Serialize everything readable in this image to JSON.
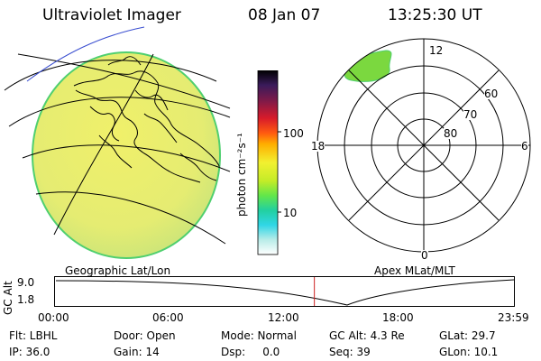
{
  "header": {
    "instrument": "Ultraviolet Imager",
    "date": "08 Jan 07",
    "time": "13:25:30 UT"
  },
  "colorbar": {
    "unit_label": "photon cm⁻²s⁻¹",
    "tick_labels": [
      "100",
      "10"
    ]
  },
  "polar_plot": {
    "mlt_labels": {
      "top": "12",
      "left": "18",
      "right": "6",
      "bottom": "0"
    },
    "mlat_labels": [
      "60",
      "70",
      "80"
    ]
  },
  "panel_labels": {
    "geographic": "Geographic Lat/Lon",
    "apex": "Apex  MLat/MLT"
  },
  "timeline": {
    "y_axis_label": "GC Alt",
    "y_ticks": [
      "9.0",
      "1.8"
    ],
    "x_ticks": [
      "00:00",
      "06:00",
      "12:00",
      "18:00",
      "23:59"
    ],
    "current_time_fraction": 0.565,
    "curve_color": "#000000",
    "marker_color": "#cc2222"
  },
  "status": {
    "row1": [
      "Flt: LBHL",
      "Door: Open",
      "Mode: Normal",
      "GC Alt: 4.3 Re",
      "GLat: 29.7"
    ],
    "row2": [
      "IP: 36.0",
      "Gain: 14",
      "Dsp:     0.0",
      "Seq: 39",
      "GLon: 10.1"
    ]
  },
  "colors": {
    "globe_fill": "#e7ec6e",
    "globe_edge": "#4fcf6f",
    "aurora": "#7bd83f",
    "background": "#ffffff"
  }
}
